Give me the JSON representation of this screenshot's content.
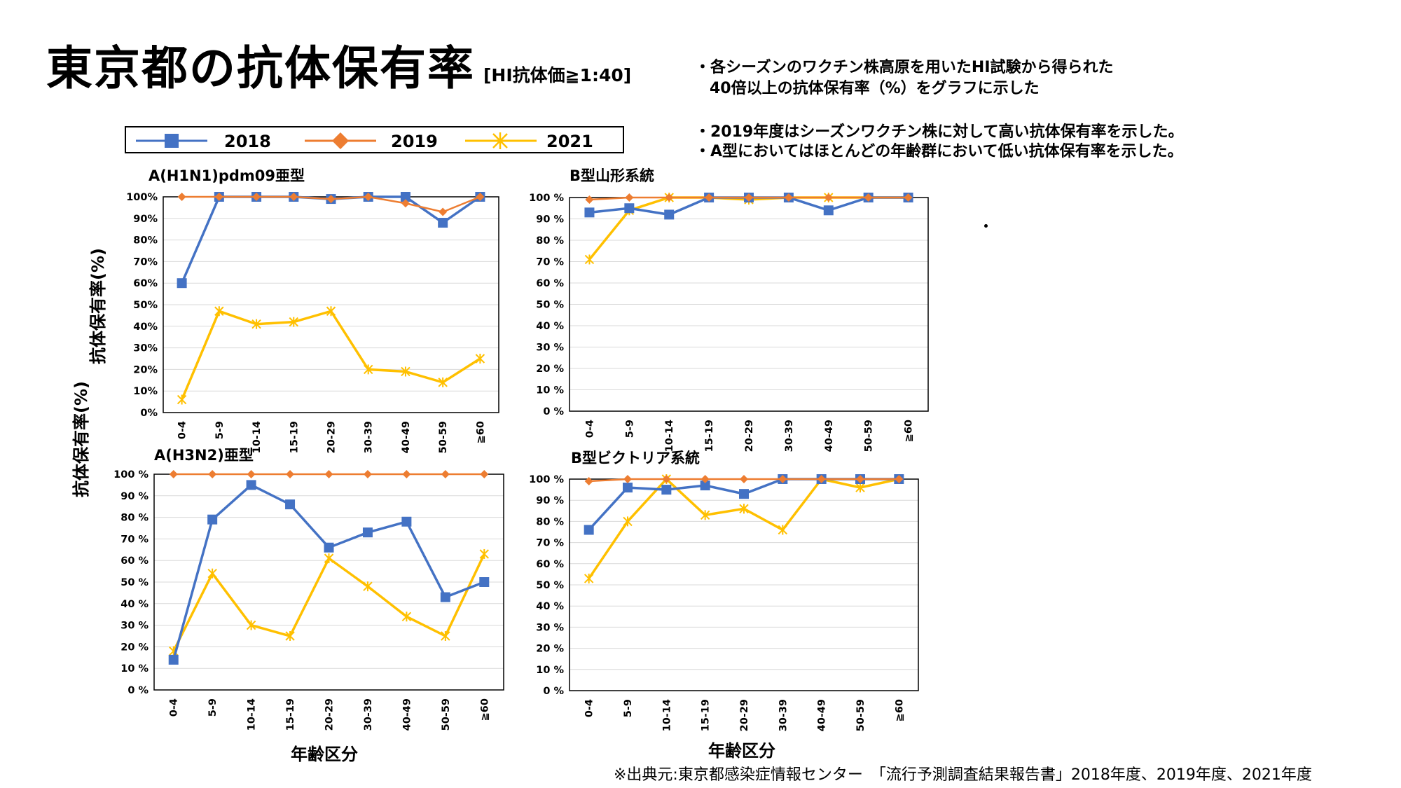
{
  "title": "東京都の抗体保有率",
  "subtitle": "[HI抗体価≧1:40]",
  "notes": [
    "・各シーズンのワクチン株高原を用いたHI試験から得られた",
    "40倍以上の抗体保有率（%）をグラフに示した",
    "・2019年度はシーズンワクチン株に対して高い抗体保有率を示した。",
    "・A型においてはほとんどの年齢群において低い抗体保有率を示した。"
  ],
  "legend": [
    {
      "name": "2018",
      "color": "#4472C4",
      "marker": "square"
    },
    {
      "name": "2019",
      "color": "#ED7D31",
      "marker": "diamond"
    },
    {
      "name": "2021",
      "color": "#FFC000",
      "marker": "star"
    }
  ],
  "y_axis_label": "抗体保有率(%)",
  "x_axis_label": "年齢区分",
  "source": "※出典元:東京都感染症情報センター　「流行予測調査結果報告書」2018年度、2019年度、2021年度",
  "chart_data": [
    {
      "type": "line",
      "title": "A(H1N1)pdm09亜型",
      "categories": [
        "0-4",
        "5-9",
        "10-14",
        "15-19",
        "20-29",
        "30-39",
        "40-49",
        "50-59",
        "≧60"
      ],
      "yticks": [
        "0%",
        "10%",
        "20%",
        "30%",
        "40%",
        "50%",
        "60%",
        "70%",
        "80%",
        "90%",
        "100%"
      ],
      "ylim": [
        0,
        100
      ],
      "series": [
        {
          "name": "2018",
          "values": [
            60,
            100,
            100,
            100,
            99,
            100,
            100,
            88,
            100
          ]
        },
        {
          "name": "2019",
          "values": [
            100,
            100,
            100,
            100,
            99,
            100,
            97,
            93,
            100
          ]
        },
        {
          "name": "2021",
          "values": [
            6,
            47,
            41,
            42,
            47,
            20,
            19,
            14,
            25
          ]
        }
      ]
    },
    {
      "type": "line",
      "title": "B型山形系統",
      "categories": [
        "0-4",
        "5-9",
        "10-14",
        "15-19",
        "20-29",
        "30-39",
        "40-49",
        "50-59",
        "≧60"
      ],
      "yticks": [
        "0 %",
        "10 %",
        "20 %",
        "30 %",
        "40 %",
        "50 %",
        "60 %",
        "70 %",
        "80 %",
        "90 %",
        "100 %"
      ],
      "ylim": [
        0,
        100
      ],
      "series": [
        {
          "name": "2018",
          "values": [
            93,
            95,
            92,
            100,
            100,
            100,
            94,
            100,
            100
          ]
        },
        {
          "name": "2019",
          "values": [
            99,
            100,
            100,
            100,
            100,
            100,
            100,
            100,
            100
          ]
        },
        {
          "name": "2021",
          "values": [
            71,
            94,
            100,
            100,
            99,
            100,
            100,
            100,
            100
          ]
        }
      ]
    },
    {
      "type": "line",
      "title": "A(H3N2)亜型",
      "categories": [
        "0-4",
        "5-9",
        "10-14",
        "15-19",
        "20-29",
        "30-39",
        "40-49",
        "50-59",
        "≧60"
      ],
      "yticks": [
        "0 %",
        "10 %",
        "20 %",
        "30 %",
        "40 %",
        "50 %",
        "60 %",
        "70 %",
        "80 %",
        "90 %",
        "100 %"
      ],
      "ylim": [
        0,
        100
      ],
      "series": [
        {
          "name": "2018",
          "values": [
            14,
            79,
            95,
            86,
            66,
            73,
            78,
            43,
            50
          ]
        },
        {
          "name": "2019",
          "values": [
            100,
            100,
            100,
            100,
            100,
            100,
            100,
            100,
            100
          ]
        },
        {
          "name": "2021",
          "values": [
            18,
            54,
            30,
            25,
            61,
            48,
            34,
            25,
            63
          ]
        }
      ]
    },
    {
      "type": "line",
      "title": "B型ビクトリア系統",
      "categories": [
        "0-4",
        "5-9",
        "10-14",
        "15-19",
        "20-29",
        "30-39",
        "40-49",
        "50-59",
        "≧60"
      ],
      "yticks": [
        "0 %",
        "10 %",
        "20 %",
        "30 %",
        "40 %",
        "50 %",
        "60 %",
        "70 %",
        "80 %",
        "90 %",
        "100 %"
      ],
      "ylim": [
        0,
        100
      ],
      "series": [
        {
          "name": "2018",
          "values": [
            76,
            96,
            95,
            97,
            93,
            100,
            100,
            100,
            100
          ]
        },
        {
          "name": "2019",
          "values": [
            99,
            100,
            100,
            100,
            100,
            100,
            100,
            100,
            100
          ]
        },
        {
          "name": "2021",
          "values": [
            53,
            80,
            100,
            83,
            86,
            76,
            100,
            96,
            100
          ]
        }
      ]
    }
  ]
}
